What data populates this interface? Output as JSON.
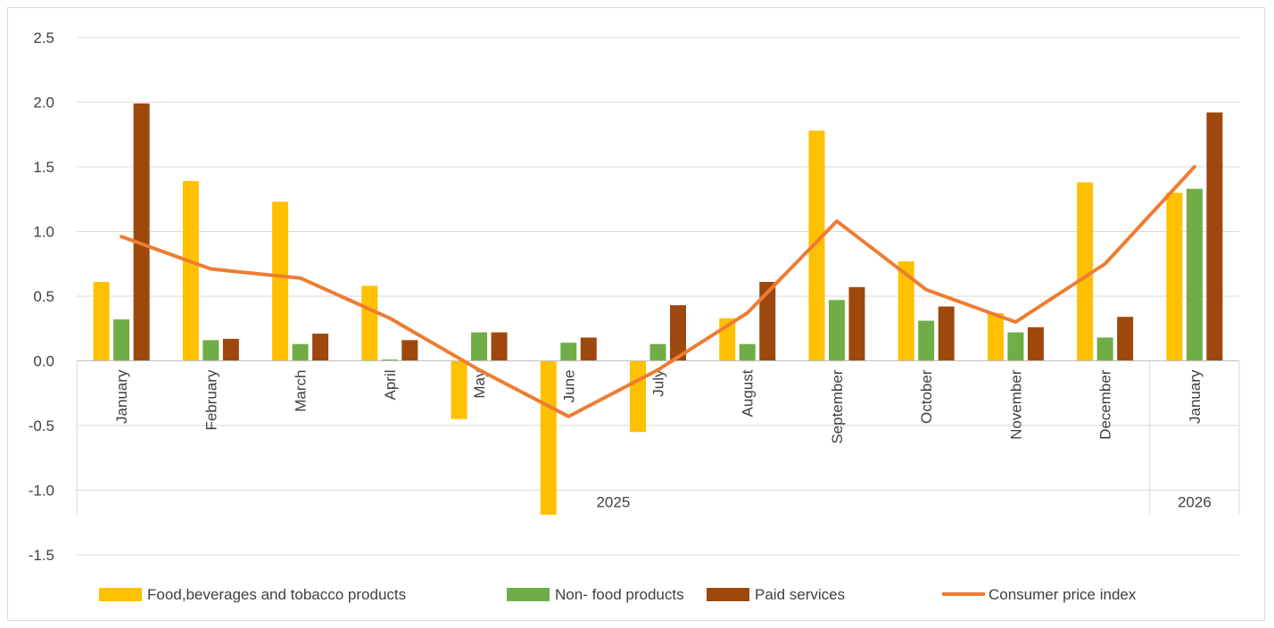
{
  "chart_data": {
    "type": "bar",
    "title": "",
    "xlabel": "",
    "ylabel": "",
    "ylim": [
      -1.5,
      2.5
    ],
    "yticks": [
      "2.5",
      "2.0",
      "1.5",
      "1.0",
      "0.5",
      "0.0",
      "-0.5",
      "-1.0",
      "-1.5"
    ],
    "grid": true,
    "legend_position": "bottom",
    "categories": [
      "January",
      "February",
      "March",
      "April",
      "May",
      "June",
      "July",
      "August",
      "September",
      "October",
      "November",
      "December",
      "January"
    ],
    "year_groups": [
      {
        "label": "2025",
        "count": 12
      },
      {
        "label": "2026",
        "count": 1
      }
    ],
    "series": [
      {
        "name": "Food,beverages and tobacco products",
        "kind": "bar",
        "color": "#FFC000",
        "values": [
          0.61,
          1.39,
          1.23,
          0.58,
          -0.45,
          -1.19,
          -0.55,
          0.33,
          1.78,
          0.77,
          0.37,
          1.38,
          1.3
        ]
      },
      {
        "name": "Non- food products",
        "kind": "bar",
        "color": "#70AD47",
        "values": [
          0.32,
          0.16,
          0.13,
          0.01,
          0.22,
          0.14,
          0.13,
          0.13,
          0.47,
          0.31,
          0.22,
          0.18,
          1.33
        ]
      },
      {
        "name": "Paid services",
        "kind": "bar",
        "color": "#9E480E",
        "values": [
          1.99,
          0.17,
          0.21,
          0.16,
          0.22,
          0.18,
          0.43,
          0.61,
          0.57,
          0.42,
          0.26,
          0.34,
          1.92
        ]
      },
      {
        "name": "Consumer price index",
        "kind": "line",
        "color": "#ED7D31",
        "values": [
          0.96,
          0.71,
          0.64,
          0.33,
          -0.07,
          -0.43,
          -0.07,
          0.37,
          1.08,
          0.55,
          0.3,
          0.75,
          1.5
        ]
      }
    ]
  }
}
